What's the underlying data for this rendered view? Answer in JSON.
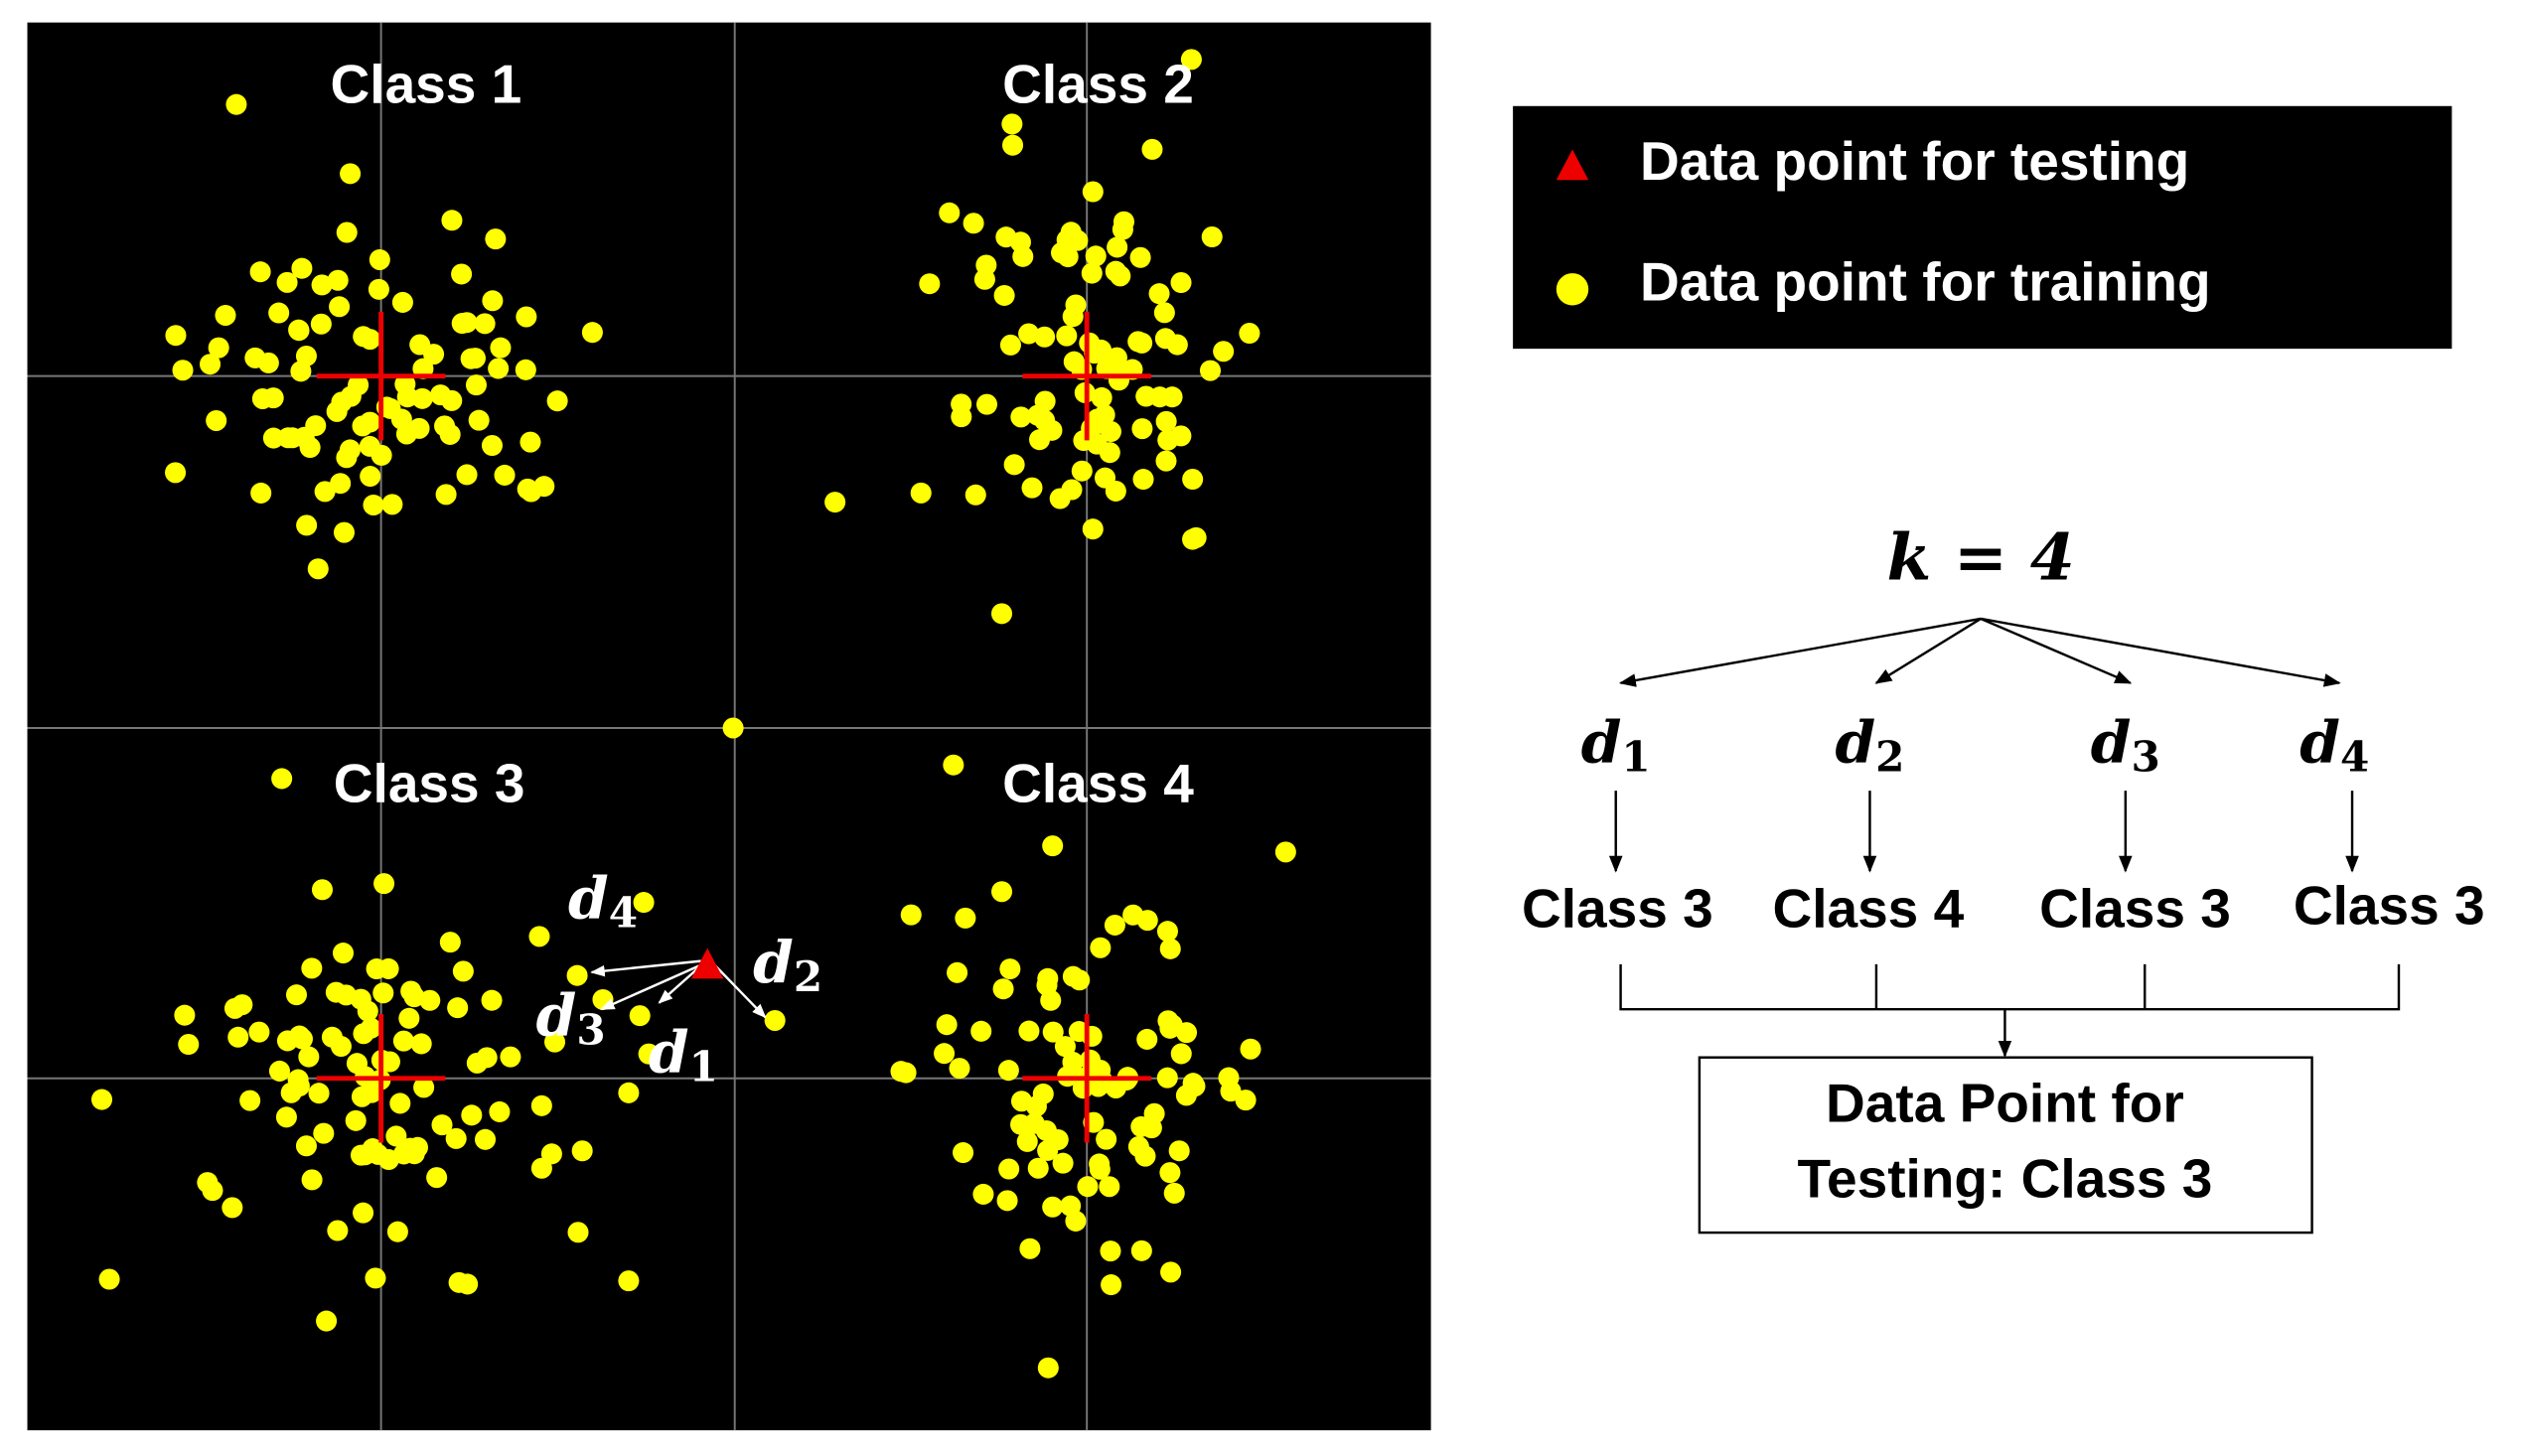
{
  "panel": {
    "classes": [
      "Class 1",
      "Class 2",
      "Class 3",
      "Class 4"
    ]
  },
  "distances": [
    {
      "symbol": "d",
      "index": "1"
    },
    {
      "symbol": "d",
      "index": "2"
    },
    {
      "symbol": "d",
      "index": "3"
    },
    {
      "symbol": "d",
      "index": "4"
    }
  ],
  "legend": {
    "items": [
      "Data point for testing",
      "Data point for training"
    ]
  },
  "diagram": {
    "k_label": "k = 4",
    "votes": [
      "Class 3",
      "Class 4",
      "Class 3",
      "Class 3"
    ],
    "result": [
      "Data Point for",
      "Testing: Class 3"
    ]
  }
}
